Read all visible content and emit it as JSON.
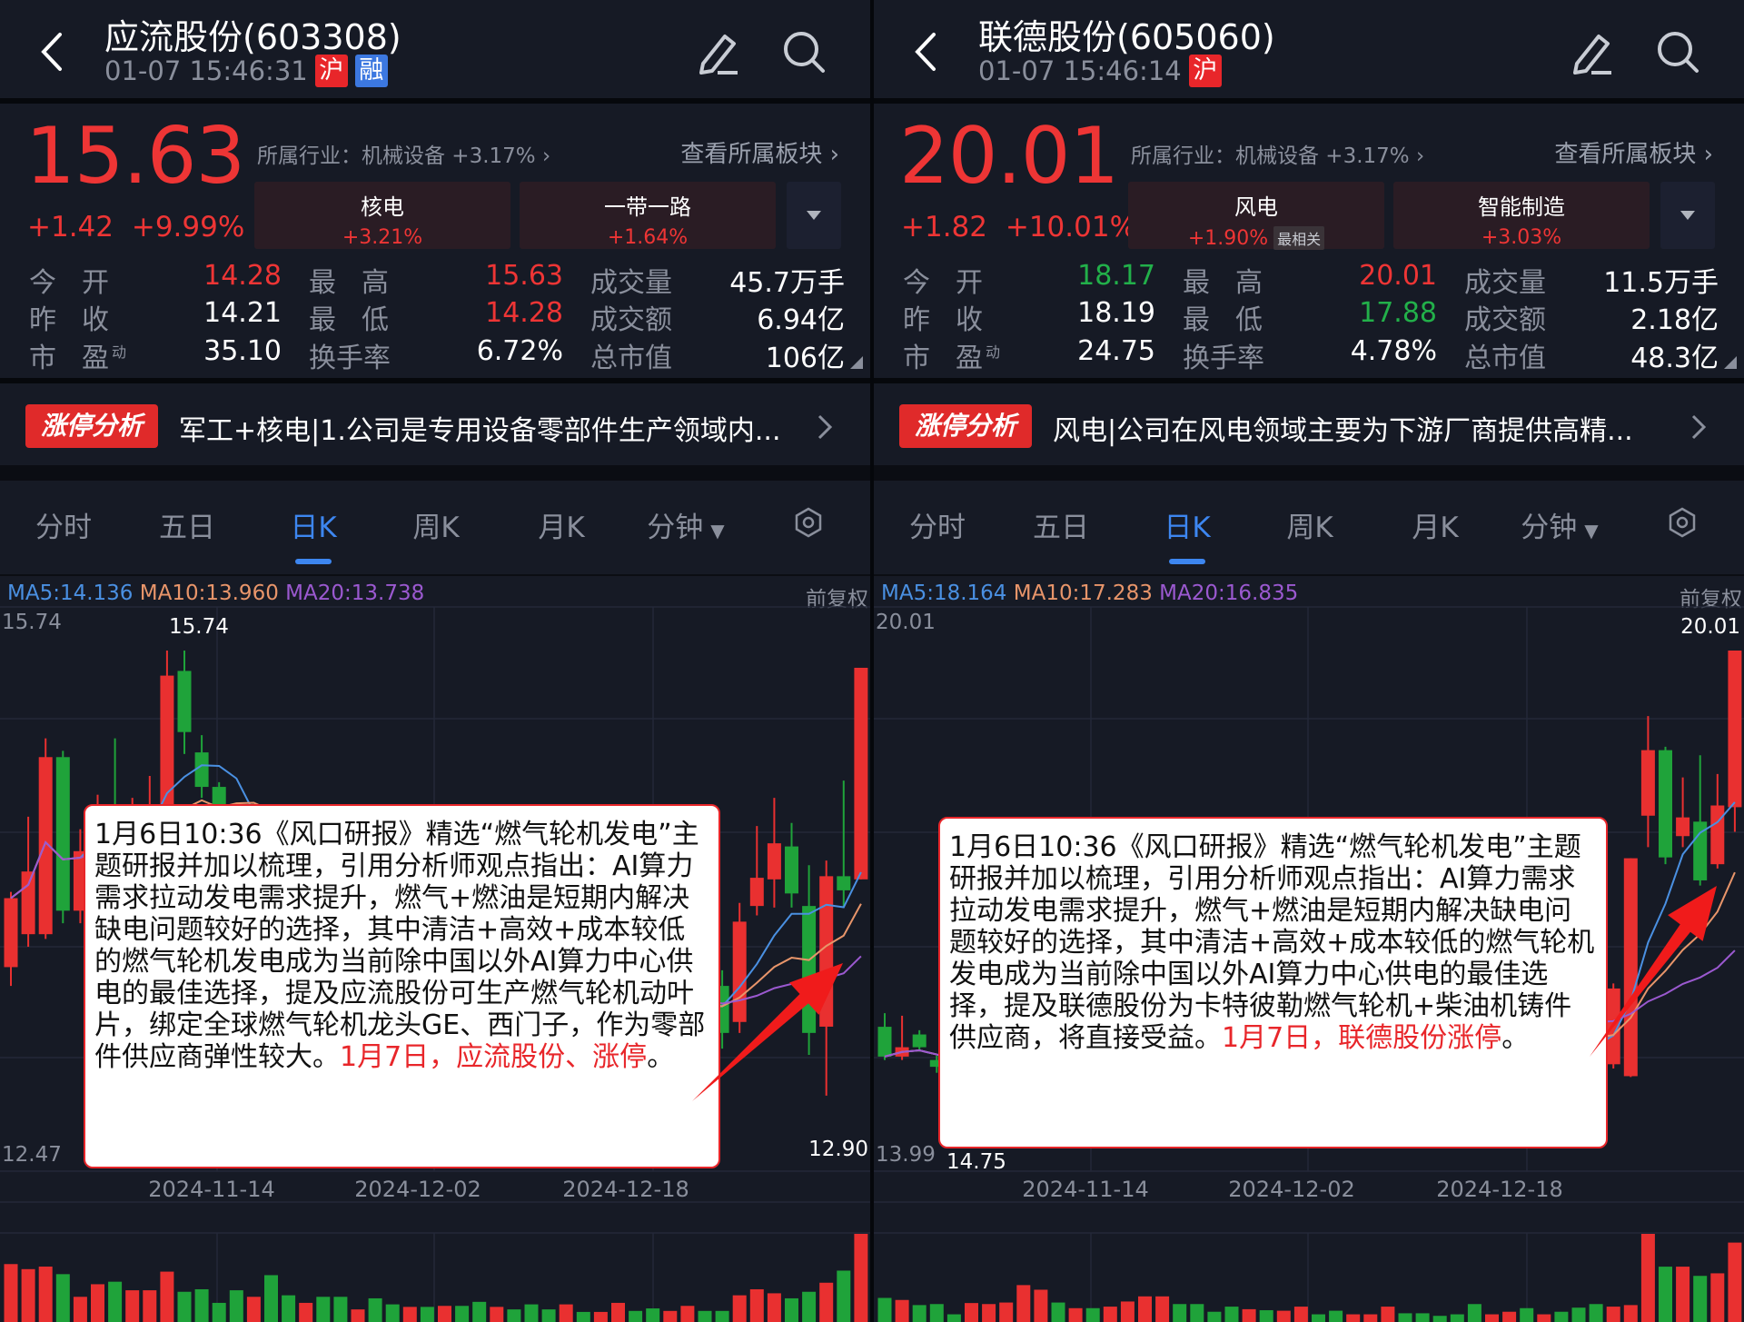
{
  "colors": {
    "up": "#e93030",
    "down": "#1fa33a",
    "ma5": "#4a90e2",
    "ma10": "#e8956a",
    "ma20": "#9b59d0",
    "accent": "#3d86f0"
  },
  "tabs": [
    "分时",
    "五日",
    "日K",
    "周K",
    "月K",
    "分钟"
  ],
  "active_tab": "日K",
  "fq_label": "前复权",
  "view_sectors": "查看所属板块 ›",
  "limit_badge": "涨停分析",
  "dates": [
    "2024-11-14",
    "2024-12-02",
    "2024-12-18"
  ],
  "panels": [
    {
      "title": "应流股份(603308)",
      "time": "01-07 15:46:31",
      "badges": [
        "沪",
        "融"
      ],
      "price": "15.63",
      "change": "+1.42",
      "change_pct": "+9.99%",
      "industry": "所属行业：机械设备 +3.17% ›",
      "sectors": [
        {
          "name": "核电",
          "pct": "+3.21%",
          "tag": ""
        },
        {
          "name": "一带一路",
          "pct": "+1.64%",
          "tag": ""
        }
      ],
      "stats": [
        [
          {
            "l": "今开",
            "v": "14.28",
            "c": "up"
          },
          {
            "l": "最高",
            "v": "15.63",
            "c": "up"
          },
          {
            "l": "成交量",
            "v": "45.7万手",
            "c": "w"
          }
        ],
        [
          {
            "l": "昨收",
            "v": "14.21",
            "c": "w"
          },
          {
            "l": "最低",
            "v": "14.28",
            "c": "up"
          },
          {
            "l": "成交额",
            "v": "6.94亿",
            "c": "w"
          }
        ],
        [
          {
            "l": "市盈",
            "sup": "动",
            "v": "35.10",
            "c": "w"
          },
          {
            "l": "换手率",
            "v": "6.72%",
            "c": "w"
          },
          {
            "l": "总市值",
            "v": "106亿",
            "c": "w"
          }
        ]
      ],
      "limit_text": "军工+核电|1.公司是专用设备零部件生产领域内...",
      "ma": {
        "ma5": "MA5:14.136",
        "ma10": "MA10:13.960",
        "ma20": "MA20:13.738"
      },
      "axis": {
        "top": "15.74",
        "bottom": "12.47",
        "max_mark": "15.74",
        "min_mark": "12.90",
        "ymax": 15.74,
        "ymin": 12.47
      },
      "popup": {
        "text": "1月6日10:36《风口研报》精选“燃气轮机发电”主题研报并加以梳理，引用分析师观点指出：AI算力需求拉动发电需求提升，燃气+燃油是短期内解决缺电问题较好的选择，其中清洁+高效+成本较低的燃气轮机发电成为当前除中国以外AI算力中心供电的最佳选择，提及应流股份可生产燃气轮机动叶片，绑定全球燃气轮机龙头GE、西门子，作为零部件供应商弹性较大。",
        "highlight": "1月7日，应流股份、涨停",
        "end": "。"
      },
      "candles": [
        [
          13.72,
          14.16,
          14.2,
          13.6
        ],
        [
          13.93,
          14.33,
          14.68,
          13.85
        ],
        [
          13.93,
          15.06,
          15.18,
          13.9
        ],
        [
          15.06,
          14.08,
          15.1,
          14.0
        ],
        [
          14.08,
          14.46,
          14.6,
          14.0
        ],
        [
          14.46,
          14.7,
          14.82,
          14.3
        ],
        [
          14.7,
          14.5,
          15.18,
          14.4
        ],
        [
          14.5,
          14.62,
          14.8,
          14.3
        ],
        [
          14.4,
          14.75,
          14.94,
          14.3
        ],
        [
          14.3,
          15.58,
          15.74,
          14.2
        ],
        [
          15.61,
          15.22,
          15.74,
          15.08
        ],
        [
          15.09,
          14.87,
          15.2,
          14.8
        ],
        [
          14.87,
          14.6,
          14.9,
          14.5
        ],
        [
          14.6,
          14.35,
          14.7,
          14.25
        ],
        [
          14.35,
          14.5,
          14.62,
          14.2
        ],
        [
          14.5,
          14.2,
          14.55,
          14.1
        ],
        [
          14.2,
          14.05,
          14.3,
          13.95
        ],
        [
          14.05,
          14.25,
          14.4,
          13.98
        ],
        [
          14.25,
          14.0,
          14.3,
          13.9
        ],
        [
          14.0,
          13.85,
          14.1,
          13.75
        ],
        [
          13.85,
          13.95,
          14.05,
          13.7
        ],
        [
          13.95,
          13.8,
          14.0,
          13.7
        ],
        [
          13.8,
          13.6,
          13.9,
          13.5
        ],
        [
          13.6,
          13.7,
          13.8,
          13.5
        ],
        [
          13.7,
          13.55,
          13.75,
          13.45
        ],
        [
          13.55,
          13.65,
          13.75,
          13.45
        ],
        [
          13.65,
          13.5,
          13.7,
          13.4
        ],
        [
          13.5,
          13.4,
          13.6,
          13.3
        ],
        [
          13.4,
          13.55,
          13.65,
          13.35
        ],
        [
          13.55,
          13.45,
          13.6,
          13.35
        ],
        [
          13.45,
          13.35,
          13.5,
          13.25
        ],
        [
          13.35,
          13.3,
          13.45,
          13.2
        ],
        [
          13.3,
          13.45,
          13.55,
          13.25
        ],
        [
          13.45,
          13.35,
          13.5,
          13.25
        ],
        [
          13.35,
          13.5,
          13.6,
          13.3
        ],
        [
          13.5,
          13.6,
          13.7,
          13.4
        ],
        [
          13.6,
          13.45,
          13.65,
          13.35
        ],
        [
          13.45,
          13.4,
          13.55,
          13.3
        ],
        [
          13.4,
          13.55,
          13.65,
          13.35
        ],
        [
          13.55,
          13.6,
          13.7,
          13.45
        ],
        [
          13.6,
          13.5,
          13.75,
          13.4
        ],
        [
          13.6,
          13.3,
          13.7,
          13.2
        ],
        [
          13.37,
          14.01,
          14.13,
          13.3
        ],
        [
          14.11,
          14.29,
          14.62,
          14.05
        ],
        [
          14.28,
          14.51,
          14.8,
          14.1
        ],
        [
          14.49,
          14.19,
          14.64,
          14.1
        ],
        [
          14.11,
          13.3,
          14.37,
          13.16
        ],
        [
          13.34,
          14.3,
          14.4,
          12.9
        ],
        [
          14.3,
          14.21,
          14.91,
          14.1
        ],
        [
          14.28,
          15.63,
          15.63,
          14.28
        ]
      ],
      "volume": [
        115,
        105,
        110,
        95,
        50,
        75,
        80,
        63,
        63,
        100,
        60,
        65,
        38,
        63,
        50,
        93,
        53,
        38,
        50,
        50,
        25,
        47,
        35,
        30,
        30,
        32,
        32,
        40,
        30,
        25,
        35,
        25,
        35,
        20,
        20,
        38,
        22,
        27,
        22,
        32,
        22,
        22,
        53,
        65,
        57,
        47,
        60,
        78,
        102,
        175
      ]
    },
    {
      "title": "联德股份(605060)",
      "time": "01-07 15:46:14",
      "badges": [
        "沪"
      ],
      "price": "20.01",
      "change": "+1.82",
      "change_pct": "+10.01%",
      "industry": "所属行业：机械设备 +3.17% ›",
      "sectors": [
        {
          "name": "风电",
          "pct": "+1.90%",
          "tag": "最相关"
        },
        {
          "name": "智能制造",
          "pct": "+3.03%",
          "tag": ""
        }
      ],
      "stats": [
        [
          {
            "l": "今开",
            "v": "18.17",
            "c": "down"
          },
          {
            "l": "最高",
            "v": "20.01",
            "c": "up"
          },
          {
            "l": "成交量",
            "v": "11.5万手",
            "c": "w"
          }
        ],
        [
          {
            "l": "昨收",
            "v": "18.19",
            "c": "w"
          },
          {
            "l": "最低",
            "v": "17.88",
            "c": "down"
          },
          {
            "l": "成交额",
            "v": "2.18亿",
            "c": "w"
          }
        ],
        [
          {
            "l": "市盈",
            "sup": "动",
            "v": "24.75",
            "c": "w"
          },
          {
            "l": "换手率",
            "v": "4.78%",
            "c": "w"
          },
          {
            "l": "总市值",
            "v": "48.3亿",
            "c": "w"
          }
        ]
      ],
      "limit_text": "风电|公司在风电领域主要为下游厂商提供高精...",
      "ma": {
        "ma5": "MA5:18.164",
        "ma10": "MA10:17.283",
        "ma20": "MA20:16.835"
      },
      "axis": {
        "top": "20.01",
        "bottom": "13.99",
        "max_mark": "20.01",
        "min_mark": "14.75",
        "ymax": 20.01,
        "ymin": 13.99
      },
      "popup": {
        "text": "1月6日10:36《风口研报》精选“燃气轮机发电”主题研报并加以梳理，引用分析师观点指出：AI算力需求拉动发电需求提升，燃气+燃油是短期内解决缺电问题较好的选择，其中清洁+高效+成本较低的燃气轮机发电成为当前除中国以外AI算力中心供电的最佳选择，提及联德股份为卡特彼勒燃气轮机+柴油机铸件供应商，将直接受益。",
        "highlight": "1月7日，联德股份涨停",
        "end": "。"
      },
      "candles": [
        [
          15.59,
          15.24,
          15.75,
          15.2
        ],
        [
          15.24,
          15.35,
          15.72,
          15.2
        ],
        [
          15.5,
          15.35,
          15.55,
          15.3
        ],
        [
          15.2,
          15.12,
          15.25,
          15.05
        ],
        [
          15.12,
          14.95,
          15.2,
          14.75
        ],
        [
          14.95,
          15.1,
          15.2,
          14.85
        ],
        [
          15.1,
          15.3,
          15.4,
          15.0
        ],
        [
          15.3,
          15.45,
          15.6,
          15.2
        ],
        [
          15.45,
          15.9,
          16.05,
          15.4
        ],
        [
          15.9,
          16.2,
          16.4,
          15.8
        ],
        [
          16.2,
          15.95,
          16.3,
          15.85
        ],
        [
          15.95,
          16.05,
          16.15,
          15.85
        ],
        [
          16.05,
          15.85,
          16.1,
          15.75
        ],
        [
          15.85,
          16.0,
          16.1,
          15.8
        ],
        [
          16.0,
          16.2,
          16.35,
          15.95
        ],
        [
          16.2,
          16.35,
          16.5,
          16.1
        ],
        [
          16.35,
          16.5,
          16.65,
          16.25
        ],
        [
          16.5,
          16.3,
          16.55,
          16.2
        ],
        [
          16.3,
          16.1,
          16.35,
          16.0
        ],
        [
          16.1,
          15.95,
          16.15,
          15.9
        ],
        [
          15.95,
          15.8,
          16.0,
          15.7
        ],
        [
          15.8,
          15.9,
          16.0,
          15.7
        ],
        [
          15.9,
          15.75,
          15.95,
          15.65
        ],
        [
          15.75,
          15.85,
          15.95,
          15.7
        ],
        [
          15.85,
          15.95,
          16.05,
          15.8
        ],
        [
          15.95,
          15.8,
          16.0,
          15.75
        ],
        [
          15.8,
          15.7,
          15.85,
          15.6
        ],
        [
          15.7,
          15.8,
          15.9,
          15.65
        ],
        [
          15.8,
          15.9,
          16.0,
          15.75
        ],
        [
          15.9,
          15.95,
          16.05,
          15.85
        ],
        [
          15.95,
          15.85,
          16.0,
          15.8
        ],
        [
          15.85,
          15.75,
          15.9,
          15.7
        ],
        [
          15.75,
          15.65,
          15.8,
          15.6
        ],
        [
          15.65,
          15.55,
          15.7,
          15.5
        ],
        [
          15.55,
          15.4,
          15.6,
          15.35
        ],
        [
          15.4,
          15.5,
          15.6,
          15.35
        ],
        [
          15.5,
          15.6,
          15.7,
          15.45
        ],
        [
          15.6,
          15.45,
          15.65,
          15.4
        ],
        [
          15.45,
          15.55,
          15.65,
          15.4
        ],
        [
          15.55,
          15.4,
          15.6,
          15.35
        ],
        [
          15.4,
          15.3,
          15.5,
          15.2
        ],
        [
          15.2,
          15.15,
          15.3,
          15.05
        ],
        [
          15.15,
          16.04,
          16.1,
          15.1
        ],
        [
          15.01,
          17.57,
          17.57,
          15.0
        ],
        [
          18.07,
          18.84,
          19.24,
          17.7
        ],
        [
          18.84,
          17.58,
          18.88,
          17.5
        ],
        [
          17.83,
          18.05,
          18.52,
          17.7
        ],
        [
          18.0,
          17.31,
          18.78,
          17.25
        ],
        [
          17.5,
          18.19,
          18.56,
          17.45
        ],
        [
          18.17,
          20.01,
          20.01,
          17.88
        ]
      ],
      "volume": [
        47,
        43,
        33,
        35,
        15,
        37,
        35,
        38,
        72,
        63,
        38,
        27,
        27,
        30,
        40,
        50,
        50,
        35,
        35,
        20,
        30,
        25,
        23,
        22,
        30,
        15,
        22,
        15,
        15,
        30,
        17,
        17,
        12,
        15,
        35,
        15,
        20,
        27,
        15,
        20,
        28,
        35,
        30,
        33,
        172,
        108,
        108,
        90,
        95,
        155
      ]
    }
  ]
}
